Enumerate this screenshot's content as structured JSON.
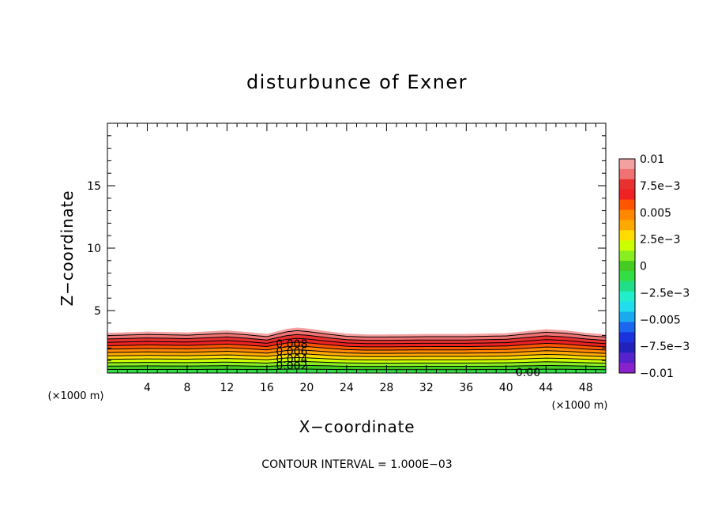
{
  "chart_data": {
    "type": "contour",
    "title": "disturbunce of Exner",
    "xlabel": "X−coordinate",
    "ylabel": "Z−coordinate",
    "x_unit_left": "(×1000 m)",
    "x_unit_right": "(×1000 m)",
    "xlim": [
      0,
      50
    ],
    "ylim": [
      0,
      20
    ],
    "x_ticks": [
      4,
      8,
      12,
      16,
      20,
      24,
      28,
      32,
      36,
      40,
      44,
      48
    ],
    "x_tick_labels": [
      "4",
      "8",
      "12",
      "16",
      "20",
      "24",
      "28",
      "32",
      "36",
      "40",
      "44",
      "48"
    ],
    "y_ticks": [
      5,
      10,
      15
    ],
    "y_tick_labels": [
      "5",
      "10",
      "15"
    ],
    "contour_interval_text": "CONTOUR INTERVAL = 1.000E−03",
    "contour_interval": 0.001,
    "levels": [
      -0.01,
      -0.009,
      -0.008,
      -0.007,
      -0.006,
      -0.005,
      -0.004,
      -0.003,
      -0.002,
      -0.001,
      0,
      0.001,
      0.002,
      0.003,
      0.004,
      0.005,
      0.006,
      0.007,
      0.008,
      0.009,
      0.01
    ],
    "colorbar": {
      "tick_labels": [
        "0.01",
        "7.5e−3",
        "0.005",
        "2.5e−3",
        "0",
        "−2.5e−3",
        "−0.005",
        "−7.5e−3",
        "−0.01"
      ],
      "tick_values": [
        0.01,
        0.0075,
        0.005,
        0.0025,
        0,
        -0.0025,
        -0.005,
        -0.0075,
        -0.01
      ],
      "colors_top_to_bottom": [
        "#f5a0a0",
        "#f07272",
        "#e83030",
        "#ee2222",
        "#ff5500",
        "#ff8800",
        "#ffaa00",
        "#ffdd00",
        "#ccff00",
        "#88ee22",
        "#44cc22",
        "#33dd44",
        "#22dd88",
        "#22eecc",
        "#22ddee",
        "#1aaaee",
        "#1a66ee",
        "#1a33dd",
        "#2222bb",
        "#5522cc",
        "#8822cc"
      ]
    },
    "profile_x": [
      0,
      4,
      8,
      12,
      14,
      16,
      18,
      19,
      20,
      22,
      24,
      26,
      28,
      32,
      36,
      40,
      42,
      44,
      46,
      48,
      50
    ],
    "profile_depth_factor": [
      1.0,
      1.03,
      1.01,
      1.06,
      1.02,
      0.97,
      1.1,
      1.13,
      1.11,
      1.04,
      0.98,
      0.96,
      0.96,
      0.97,
      0.97,
      0.99,
      1.04,
      1.09,
      1.06,
      1.0,
      0.96
    ],
    "zero_line_height_km": 0.28,
    "top_line_height_km": 3.0,
    "contour_labels": [
      {
        "text": "0.008",
        "x": 18.5,
        "y": 2.35
      },
      {
        "text": "0.006",
        "x": 18.5,
        "y": 1.75
      },
      {
        "text": "0.004",
        "x": 18.5,
        "y": 1.15
      },
      {
        "text": "0.002",
        "x": 18.5,
        "y": 0.6
      },
      {
        "text": "0.00",
        "x": 42.2,
        "y": 0.05
      }
    ]
  }
}
